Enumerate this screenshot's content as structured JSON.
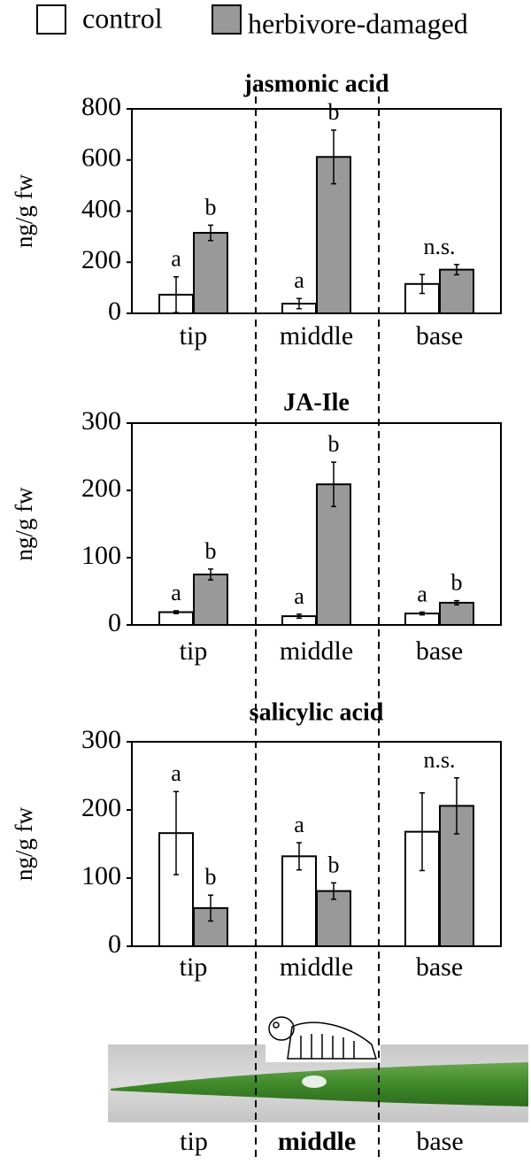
{
  "chart_data": [
    {
      "type": "bar",
      "title": "jasmonic acid",
      "ylabel": "ng/g fw",
      "categories": [
        "tip",
        "middle",
        "base"
      ],
      "ylim": [
        0,
        800
      ],
      "yticks": [
        0,
        200,
        400,
        600,
        800
      ],
      "series": [
        {
          "name": "control",
          "color": "#ffffff",
          "values": [
            73,
            38,
            115
          ],
          "errors": [
            70,
            20,
            37
          ],
          "letters": [
            "a",
            "a",
            null
          ]
        },
        {
          "name": "herbivore-damaged",
          "color": "#999999",
          "values": [
            315,
            612,
            171
          ],
          "errors": [
            30,
            105,
            20
          ],
          "letters": [
            "b",
            "b",
            null
          ]
        }
      ],
      "group_notes": [
        null,
        null,
        "n.s."
      ]
    },
    {
      "type": "bar",
      "title": "JA-Ile",
      "ylabel": "ng/g fw",
      "categories": [
        "tip",
        "middle",
        "base"
      ],
      "ylim": [
        0,
        300
      ],
      "yticks": [
        0,
        100,
        200,
        300
      ],
      "series": [
        {
          "values": [
            19,
            13,
            17
          ],
          "errors": [
            2,
            3,
            2
          ],
          "letters": [
            "a",
            "a",
            "a"
          ]
        },
        {
          "values": [
            75,
            209,
            33
          ],
          "errors": [
            8,
            33,
            3
          ],
          "letters": [
            "b",
            "b",
            "b"
          ]
        }
      ],
      "group_notes": [
        null,
        null,
        null
      ]
    },
    {
      "type": "bar",
      "title": "salicylic acid",
      "ylabel": "ng/g fw",
      "categories": [
        "tip",
        "middle",
        "base"
      ],
      "ylim": [
        0,
        300
      ],
      "yticks": [
        0,
        100,
        200,
        300
      ],
      "series": [
        {
          "values": [
            166,
            132,
            168
          ],
          "errors": [
            61,
            20,
            57
          ],
          "letters": [
            "a",
            "a",
            null
          ]
        },
        {
          "values": [
            56,
            81,
            206
          ],
          "errors": [
            19,
            12,
            41
          ],
          "letters": [
            "b",
            "b",
            null
          ]
        }
      ],
      "group_notes": [
        null,
        null,
        "n.s."
      ]
    }
  ],
  "leaf_labels": [
    "tip",
    "middle",
    "base"
  ]
}
